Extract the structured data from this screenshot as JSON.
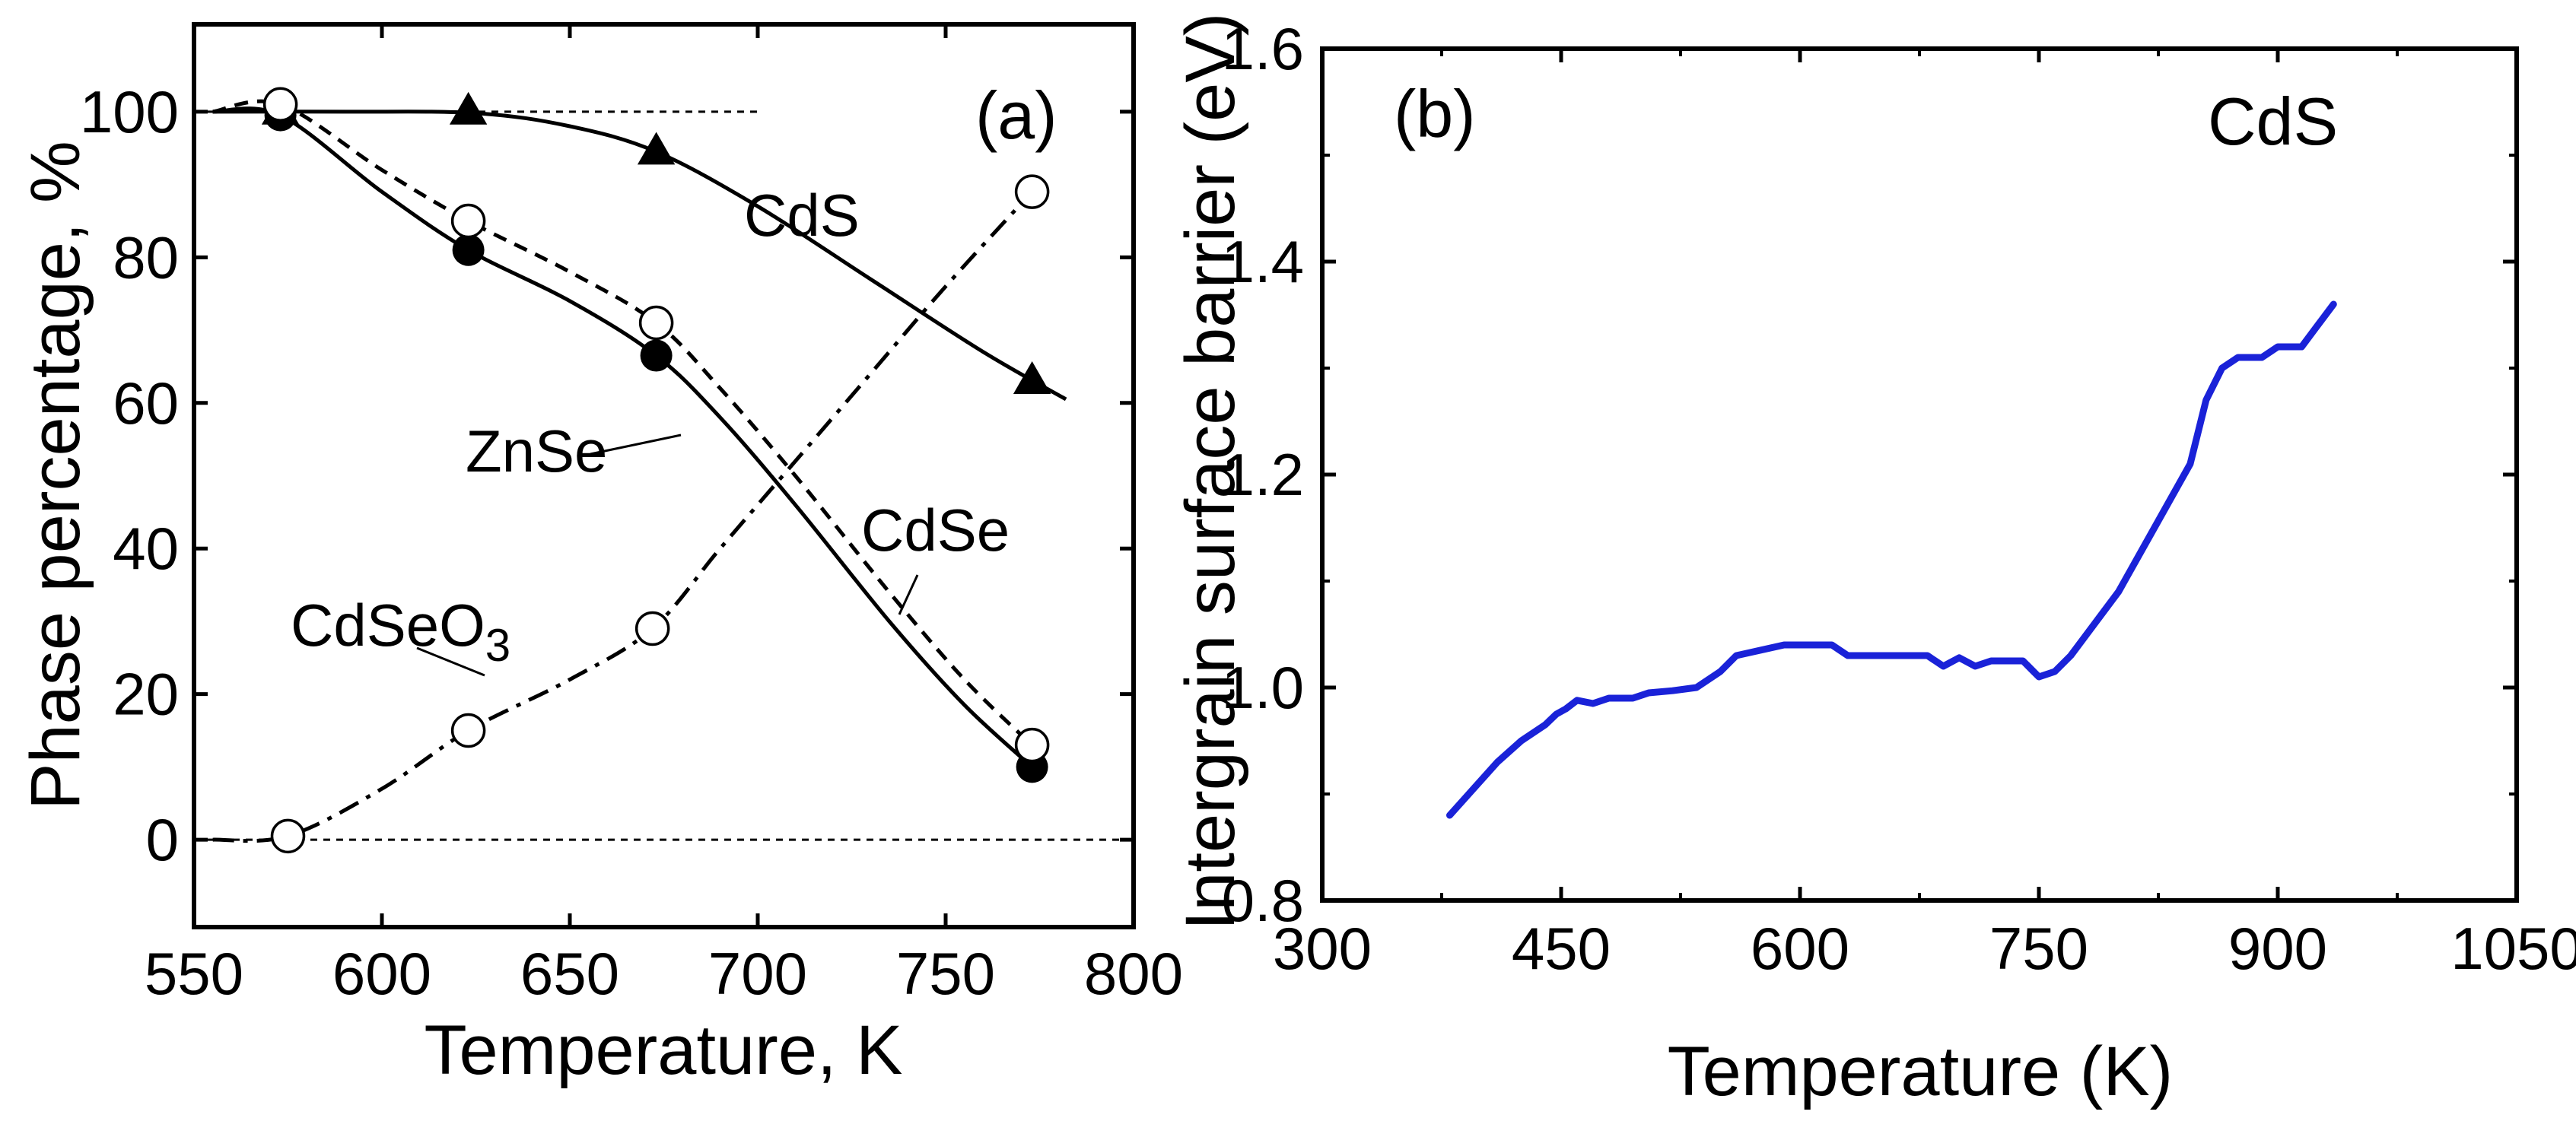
{
  "chart_data": [
    {
      "panel": "(a)",
      "type": "line",
      "xlabel": "Temperature, K",
      "ylabel": "Phase percentage, %",
      "xlim": [
        550,
        800
      ],
      "ylim": [
        -12,
        112
      ],
      "xticks": [
        550,
        600,
        650,
        700,
        750,
        800
      ],
      "yticks": [
        0,
        20,
        40,
        60,
        80,
        100
      ],
      "grid": false,
      "reference_lines": [
        0,
        100
      ],
      "series": [
        {
          "name": "CdS",
          "marker": "filled-triangle",
          "line": "solid",
          "points": [
            [
              573,
              100
            ],
            [
              623,
              100
            ],
            [
              673,
              94.5
            ],
            [
              773,
              63
            ]
          ],
          "curve": [
            [
              555,
              100
            ],
            [
              590,
              100
            ],
            [
              625,
              99.8
            ],
            [
              650,
              98
            ],
            [
              673,
              94.5
            ],
            [
              700,
              87
            ],
            [
              730,
              77
            ],
            [
              760,
              67
            ],
            [
              782,
              60.5
            ]
          ]
        },
        {
          "name": "ZnSe",
          "marker": "filled-circle",
          "line": "solid",
          "points": [
            [
              573,
              99.5
            ],
            [
              623,
              81
            ],
            [
              673,
              66.5
            ],
            [
              773,
              10
            ]
          ],
          "curve": [
            [
              555,
              100
            ],
            [
              573,
              99.5
            ],
            [
              600,
              89
            ],
            [
              623,
              81
            ],
            [
              650,
              74
            ],
            [
              673,
              66.5
            ],
            [
              690,
              58
            ],
            [
              710,
              46
            ],
            [
              735,
              30
            ],
            [
              755,
              18.5
            ],
            [
              773,
              10
            ]
          ]
        },
        {
          "name": "CdSe",
          "marker": "open-circle",
          "line": "dashed",
          "points": [
            [
              573,
              101
            ],
            [
              623,
              85
            ],
            [
              673,
              71
            ],
            [
              773,
              13
            ]
          ],
          "curve": [
            [
              555,
              100
            ],
            [
              573,
              101
            ],
            [
              600,
              92
            ],
            [
              623,
              85
            ],
            [
              650,
              78
            ],
            [
              673,
              71
            ],
            [
              690,
              62
            ],
            [
              710,
              50
            ],
            [
              735,
              34
            ],
            [
              755,
              22
            ],
            [
              773,
              13
            ]
          ]
        },
        {
          "name": "CdSeO",
          "name_subscript": "3",
          "marker": "open-circle",
          "line": "dashdot",
          "points": [
            [
              575,
              0.5
            ],
            [
              623,
              15
            ],
            [
              672,
              29
            ],
            [
              773,
              89
            ]
          ],
          "curve": [
            [
              555,
              0
            ],
            [
              575,
              0.5
            ],
            [
              600,
              7
            ],
            [
              623,
              15
            ],
            [
              650,
              22
            ],
            [
              672,
              29
            ],
            [
              690,
              40
            ],
            [
              710,
              52
            ],
            [
              730,
              64
            ],
            [
              750,
              76
            ],
            [
              773,
              89
            ]
          ]
        }
      ]
    },
    {
      "panel": "(b)",
      "type": "line",
      "xlabel": "Temperature (K)",
      "ylabel": "Intergrain surface barrier (eV)",
      "xlim": [
        300,
        1050
      ],
      "ylim": [
        0.8,
        1.6
      ],
      "xticks": [
        300,
        450,
        600,
        750,
        900,
        1050
      ],
      "yticks": [
        "0.8",
        "1.0",
        "1.2",
        "1.4",
        "1.6"
      ],
      "grid": false,
      "annotation": "CdS",
      "line_color": "#1a22d8",
      "series": [
        {
          "points": [
            [
              380,
              0.88
            ],
            [
              395,
              0.905
            ],
            [
              410,
              0.93
            ],
            [
              425,
              0.95
            ],
            [
              440,
              0.965
            ],
            [
              447,
              0.975
            ],
            [
              453,
              0.98
            ],
            [
              460,
              0.988
            ],
            [
              470,
              0.985
            ],
            [
              480,
              0.99
            ],
            [
              495,
              0.99
            ],
            [
              505,
              0.995
            ],
            [
              520,
              0.997
            ],
            [
              535,
              1.0
            ],
            [
              550,
              1.015
            ],
            [
              560,
              1.03
            ],
            [
              575,
              1.035
            ],
            [
              590,
              1.04
            ],
            [
              620,
              1.04
            ],
            [
              630,
              1.03
            ],
            [
              680,
              1.03
            ],
            [
              690,
              1.02
            ],
            [
              700,
              1.028
            ],
            [
              710,
              1.02
            ],
            [
              720,
              1.025
            ],
            [
              740,
              1.025
            ],
            [
              750,
              1.01
            ],
            [
              760,
              1.015
            ],
            [
              770,
              1.03
            ],
            [
              785,
              1.06
            ],
            [
              800,
              1.09
            ],
            [
              815,
              1.13
            ],
            [
              830,
              1.17
            ],
            [
              845,
              1.21
            ],
            [
              855,
              1.27
            ],
            [
              865,
              1.3
            ],
            [
              875,
              1.31
            ],
            [
              890,
              1.31
            ],
            [
              900,
              1.32
            ],
            [
              915,
              1.32
            ],
            [
              925,
              1.34
            ],
            [
              935,
              1.36
            ]
          ]
        }
      ]
    }
  ]
}
